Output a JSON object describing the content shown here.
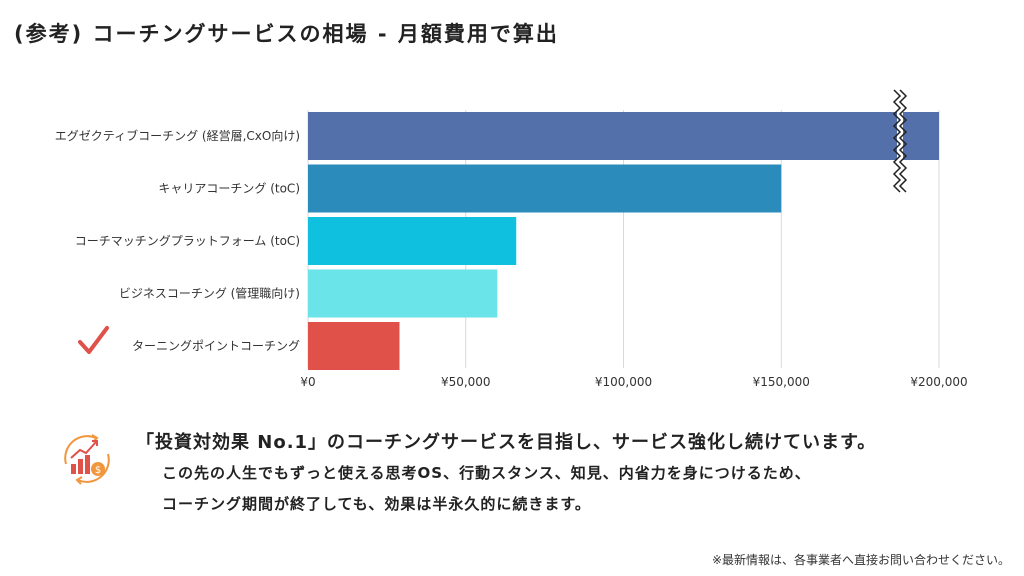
{
  "title": "(参考) コーチングサービスの相場 - 月額費用で算出",
  "chart_data": {
    "type": "bar",
    "orientation": "horizontal",
    "categories": [
      "エグゼクティブコーチング (経営層,CxO向け)",
      "キャリアコーチング (toC)",
      "コーチマッチングプラットフォーム (toC)",
      "ビジネスコーチング (管理職向け)",
      "ターニングポイントコーチング"
    ],
    "values": [
      200000,
      150000,
      66000,
      60000,
      29000
    ],
    "colors": [
      "#5470aa",
      "#2b8bba",
      "#0fc0df",
      "#6ae3e9",
      "#e0514a"
    ],
    "xlim": [
      0,
      200000
    ],
    "xticks": [
      0,
      50000,
      100000,
      150000,
      200000
    ],
    "xtick_labels": [
      "¥0",
      "¥50,000",
      "¥100,000",
      "¥150,000",
      "¥200,000"
    ],
    "grid": true,
    "axis_break_on_first_bar": true,
    "highlighted_category": "ターニングポイントコーチング"
  },
  "headline": "「投資対効果 No.1」のコーチングサービスを目指し、サービス強化し続けています。",
  "body_lines": [
    "この先の人生でもずっと使える思考OS、行動スタンス、知見、内省力を身につけるため、",
    "コーチング期間が終了しても、効果は半永久的に続きます。"
  ],
  "note": "※最新情報は、各事業者へ直接お問い合わせください。",
  "icons": {
    "highlight": "checkmark-icon",
    "growth": "growth-chart-coin-icon"
  },
  "accent_color": "#e0514a"
}
